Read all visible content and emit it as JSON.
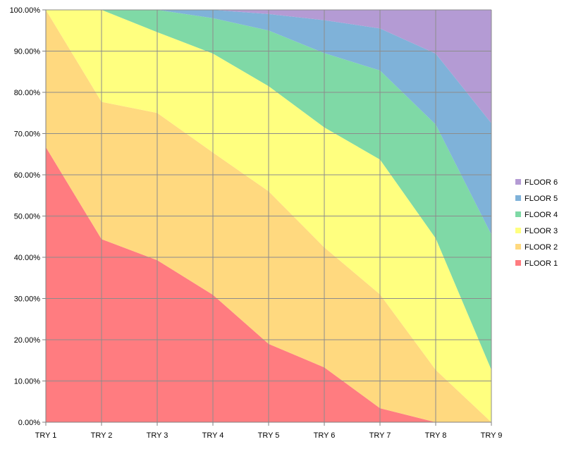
{
  "chart_data": {
    "type": "area",
    "stacked": true,
    "title": "",
    "xlabel": "",
    "ylabel": "",
    "categories": [
      "TRY 1",
      "TRY 2",
      "TRY 3",
      "TRY 4",
      "TRY 5",
      "TRY 6",
      "TRY 7",
      "TRY 8",
      "TRY 9"
    ],
    "y_ticks": [
      "0.00%",
      "10.00%",
      "20.00%",
      "30.00%",
      "40.00%",
      "50.00%",
      "60.00%",
      "70.00%",
      "80.00%",
      "90.00%",
      "100.00%"
    ],
    "ylim": [
      0,
      100
    ],
    "grid": true,
    "legend_position": "right",
    "series": [
      {
        "name": "FLOOR 1",
        "color": "#ff7c80",
        "values": [
          66.7,
          44.4,
          39.3,
          30.9,
          19.0,
          13.3,
          3.4,
          0.0,
          0.0
        ]
      },
      {
        "name": "FLOOR 2",
        "color": "#ffd97f",
        "values": [
          33.3,
          33.3,
          35.7,
          34.5,
          37.0,
          29.1,
          27.6,
          12.7,
          0.0
        ]
      },
      {
        "name": "FLOOR 3",
        "color": "#ffff7f",
        "values": [
          0.0,
          22.3,
          19.6,
          24.0,
          25.5,
          29.1,
          32.7,
          31.9,
          12.7
        ]
      },
      {
        "name": "FLOOR 4",
        "color": "#7fd9a6",
        "values": [
          0.0,
          0.0,
          5.4,
          8.6,
          13.5,
          18.0,
          21.6,
          27.6,
          32.8
        ]
      },
      {
        "name": "FLOOR 5",
        "color": "#7fb2d9",
        "values": [
          0.0,
          0.0,
          0.0,
          2.0,
          4.0,
          8.0,
          10.2,
          17.2,
          27.0
        ]
      },
      {
        "name": "FLOOR 6",
        "color": "#b49bd4",
        "values": [
          0.0,
          0.0,
          0.0,
          0.0,
          1.0,
          2.5,
          4.5,
          10.6,
          27.5
        ]
      }
    ],
    "legend_order": [
      "FLOOR 6",
      "FLOOR 5",
      "FLOOR 4",
      "FLOOR 3",
      "FLOOR 2",
      "FLOOR 1"
    ]
  }
}
